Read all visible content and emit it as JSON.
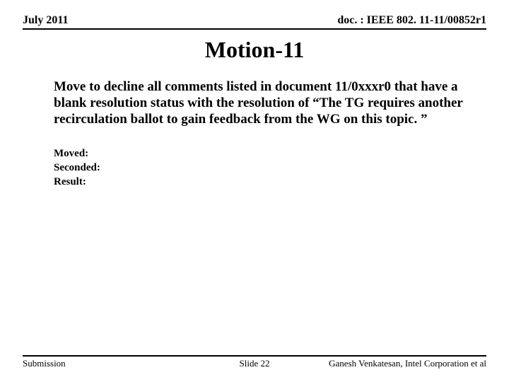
{
  "header": {
    "left": "July 2011",
    "right": "doc. : IEEE 802. 11-11/00852r1"
  },
  "title": "Motion-11",
  "body": {
    "motion_text": "Move to decline all comments listed in document 11/0xxxr0 that have a blank resolution status with the resolution of “The TG requires another recirculation ballot to gain feedback from the WG on this topic. ”",
    "fields": {
      "moved_label": "Moved:",
      "seconded_label": "Seconded:",
      "result_label": "Result:"
    }
  },
  "footer": {
    "left": "Submission",
    "center": "Slide 22",
    "right": "Ganesh Venkatesan, Intel Corporation et al"
  },
  "colors": {
    "background": "#ffffff",
    "text": "#000000",
    "rule": "#000000"
  }
}
